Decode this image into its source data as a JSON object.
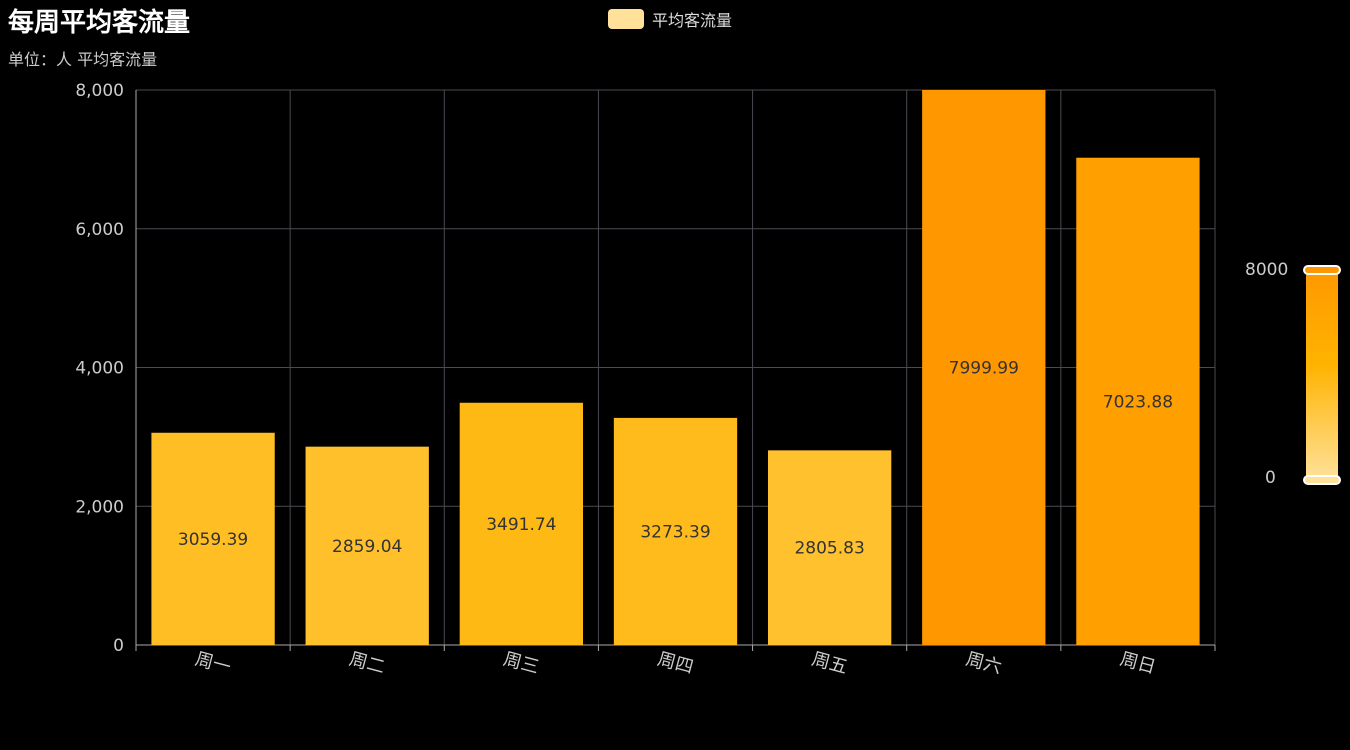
{
  "title": "每周平均客流量",
  "subtitle": "单位：人  平均客流量",
  "legend": {
    "label": "平均客流量",
    "color": "#FFE19A"
  },
  "visual_map": {
    "max_label": "8000",
    "min_label": "0",
    "min": 0,
    "max": 8000,
    "colors": [
      "#FFE19A",
      "#FFB300",
      "#FF9800"
    ]
  },
  "chart_data": {
    "type": "bar",
    "title": "每周平均客流量",
    "subtitle": "单位：人  平均客流量",
    "categories": [
      "周一",
      "周二",
      "周三",
      "周四",
      "周五",
      "周六",
      "周日"
    ],
    "series": [
      {
        "name": "平均客流量",
        "values": [
          3059.39,
          2859.04,
          3491.74,
          3273.39,
          2805.83,
          7999.99,
          7023.88
        ]
      }
    ],
    "ylim": [
      0,
      8000
    ],
    "yticks": [
      "0",
      "2,000",
      "4,000",
      "6,000",
      "8,000"
    ],
    "ytick_values": [
      0,
      2000,
      4000,
      6000,
      8000
    ],
    "grid": true,
    "legend_position": "top-center",
    "label_position": "inside"
  }
}
